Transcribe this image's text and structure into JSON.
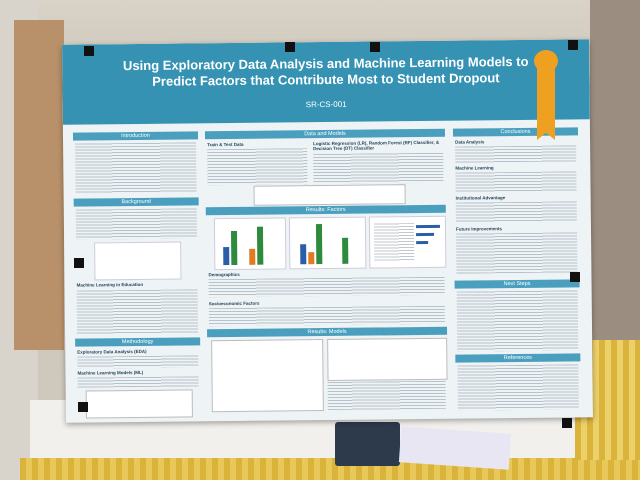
{
  "poster": {
    "title": "Using Exploratory Data Analysis and Machine Learning Models to Predict Factors that Contribute Most to Student Dropout",
    "id": "SR-CS-001",
    "left": {
      "introduction": "Introduction",
      "background": "Background",
      "ml_in_education": "Machine Learning in Education",
      "methodology": "Methodology",
      "eda": "Exploratory Data Analysis (EDA)",
      "ml_models": "Machine Learning Models (ML)"
    },
    "middle": {
      "data_and_models": "Data and Models",
      "train_test": "Train & Test Data",
      "models_list": "Logistic Regression (LR), Random Forest (RF) Classifier, & Decision Tree (DT) Classifier",
      "results_factors": "Results: Factors",
      "demographics": "Demographics",
      "socioeconomic": "Socioeconomic Factors",
      "results_models": "Results: Models"
    },
    "right": {
      "conclusions": "Conclusions",
      "data_analysis": "Data Analysis",
      "machine_learning": "Machine Learning",
      "institutional_advantage": "Institutional Advantage",
      "future_improvements": "Future Improvements",
      "next_steps": "Next Steps",
      "references": "References"
    }
  }
}
